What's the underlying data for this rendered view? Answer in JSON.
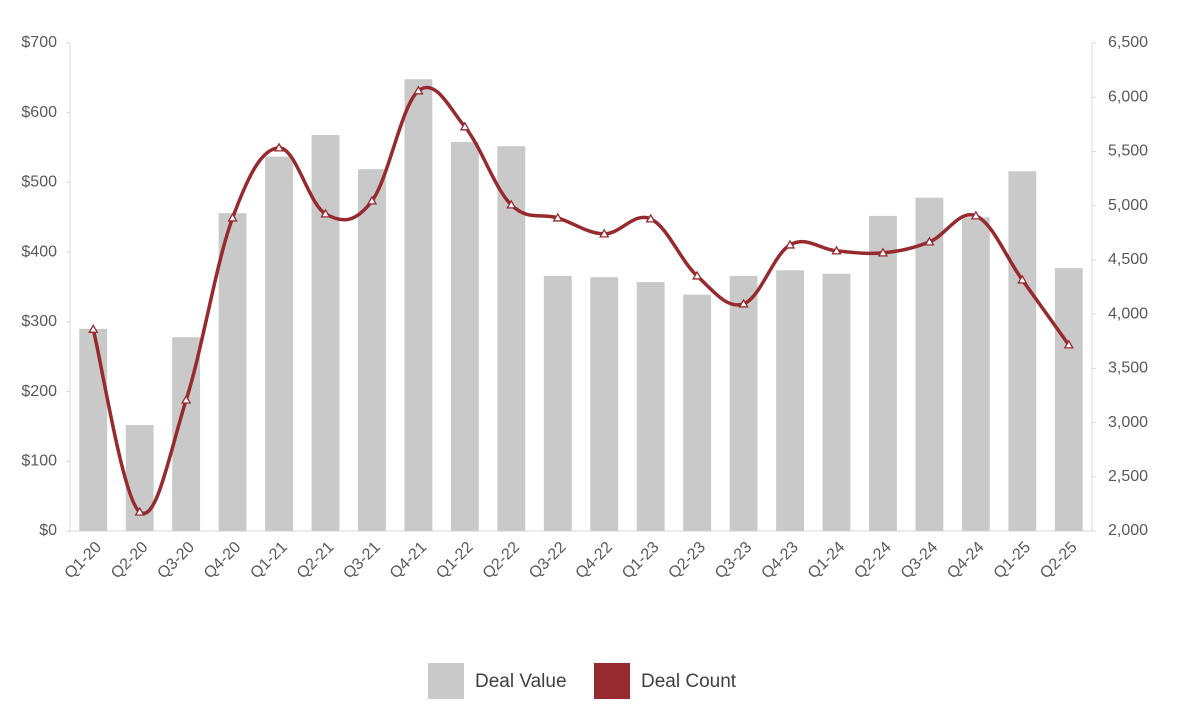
{
  "chart_data": {
    "type": "bar-line",
    "categories": [
      "Q1-20",
      "Q2-20",
      "Q3-20",
      "Q4-20",
      "Q1-21",
      "Q2-21",
      "Q3-21",
      "Q4-21",
      "Q1-22",
      "Q2-22",
      "Q3-22",
      "Q4-22",
      "Q1-23",
      "Q2-23",
      "Q3-23",
      "Q4-23",
      "Q1-24",
      "Q2-24",
      "Q3-24",
      "Q4-24",
      "Q1-25",
      "Q2-25"
    ],
    "series": [
      {
        "name": "Deal Value",
        "type": "bar",
        "color": "#c9c9c9",
        "axis": "y",
        "values": [
          290,
          152,
          278,
          456,
          537,
          568,
          519,
          648,
          558,
          552,
          366,
          364,
          357,
          339,
          366,
          374,
          369,
          452,
          478,
          450,
          516,
          377
        ]
      },
      {
        "name": "Deal Count",
        "type": "line",
        "color": "#962a2e",
        "axis": "y2",
        "values": [
          3860,
          2175,
          3208,
          4887,
          5533,
          4924,
          5044,
          6059,
          5727,
          5007,
          4887,
          4740,
          4878,
          4352,
          4094,
          4638,
          4583,
          4565,
          4666,
          4906,
          4315,
          3716
        ]
      }
    ],
    "ylim": [
      0,
      700
    ],
    "yticks": [
      {
        "value": 0,
        "label": "$0"
      },
      {
        "value": 100,
        "label": "$100"
      },
      {
        "value": 200,
        "label": "$200"
      },
      {
        "value": 300,
        "label": "$300"
      },
      {
        "value": 400,
        "label": "$400"
      },
      {
        "value": 500,
        "label": "$500"
      },
      {
        "value": 600,
        "label": "$600"
      },
      {
        "value": 700,
        "label": "$700"
      }
    ],
    "y2lim": [
      2000,
      6500
    ],
    "y2ticks": [
      {
        "value": 2000,
        "label": "2,000"
      },
      {
        "value": 2500,
        "label": "2,500"
      },
      {
        "value": 3000,
        "label": "3,000"
      },
      {
        "value": 3500,
        "label": "3,500"
      },
      {
        "value": 4000,
        "label": "4,000"
      },
      {
        "value": 4500,
        "label": "4,500"
      },
      {
        "value": 5000,
        "label": "5,000"
      },
      {
        "value": 5500,
        "label": "5,500"
      },
      {
        "value": 6000,
        "label": "6,000"
      },
      {
        "value": 6500,
        "label": "6,500"
      }
    ]
  }
}
